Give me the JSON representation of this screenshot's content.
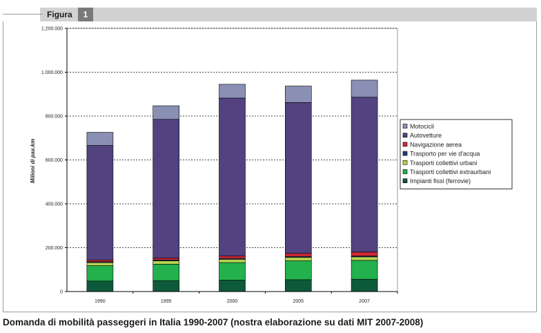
{
  "figure": {
    "label": "Figura",
    "number": "1"
  },
  "caption": "Domanda di mobilità passeggeri in Italia 1990-2007 (nostra elaborazione su dati MIT 2007-2008)",
  "chart_data": {
    "type": "bar",
    "stacked": true,
    "categories": [
      "1990",
      "1995",
      "2000",
      "2005",
      "2007"
    ],
    "ylabel": "Milioni di pax.km",
    "ylim": [
      0,
      1200000
    ],
    "yticks": [
      0,
      200000,
      400000,
      600000,
      800000,
      1000000,
      1200000
    ],
    "ytick_labels": [
      "0",
      "200.000",
      "400.000",
      "600.000",
      "800.000",
      "1.000.000",
      "1.200.000"
    ],
    "grid": true,
    "legend_position": "right",
    "series": [
      {
        "name": "Impianti fissi (ferrovie)",
        "color": "#0d5a3a",
        "values": [
          48000,
          50000,
          52000,
          54000,
          56000
        ]
      },
      {
        "name": "Trasporti collettivi extraurbani",
        "color": "#22b14c",
        "values": [
          70000,
          75000,
          80000,
          86000,
          86000
        ]
      },
      {
        "name": "Trasporti collettivi urbani",
        "color": "#b5d24e",
        "values": [
          14000,
          15000,
          15000,
          16000,
          16000
        ]
      },
      {
        "name": "Trasporto per vie d'acqua",
        "color": "#1e3a78",
        "values": [
          4000,
          4000,
          4000,
          4000,
          4000
        ]
      },
      {
        "name": "Navigazione aerea",
        "color": "#cc2a36",
        "values": [
          8000,
          9000,
          11000,
          14000,
          18000
        ]
      },
      {
        "name": "Autovetture",
        "color": "#52427f",
        "values": [
          522000,
          632000,
          720000,
          688000,
          706000
        ]
      },
      {
        "name": "Motocicli",
        "color": "#8a8fb4",
        "values": [
          60000,
          62000,
          63000,
          75000,
          78000
        ]
      }
    ]
  }
}
